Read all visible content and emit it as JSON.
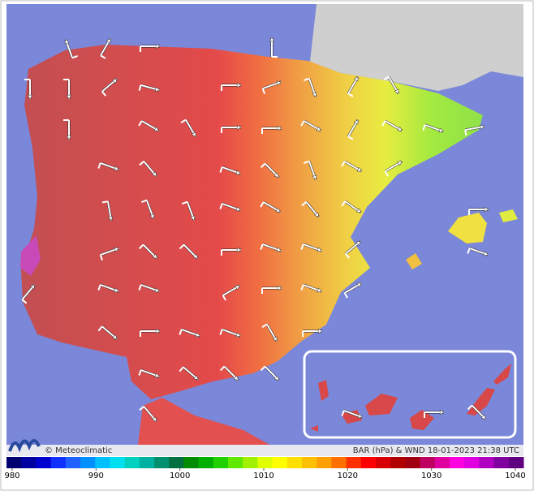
{
  "footer": {
    "credit": "© Meteoclimatic",
    "caption": "BAR (hPa) & WND 18-01-2023 21:38 UTC"
  },
  "legend": {
    "min": 980,
    "max": 1040,
    "ticks": [
      980,
      990,
      1000,
      1010,
      1020,
      1030,
      1040
    ],
    "colors": [
      "#000070",
      "#0000a0",
      "#0000d0",
      "#1030ff",
      "#2060ff",
      "#0090ff",
      "#00c0ff",
      "#00e0f0",
      "#00d0c0",
      "#00b0a0",
      "#009070",
      "#007040",
      "#008c00",
      "#00b000",
      "#20d000",
      "#60e800",
      "#a0f000",
      "#e0ff00",
      "#ffff00",
      "#ffe000",
      "#ffc000",
      "#ffa000",
      "#ff7000",
      "#ff3000",
      "#ff0000",
      "#d80000",
      "#b00000",
      "#a00010",
      "#c00060",
      "#e000a0",
      "#ff00e0",
      "#e000e0",
      "#b000c0",
      "#8000a0",
      "#600080"
    ]
  }
}
